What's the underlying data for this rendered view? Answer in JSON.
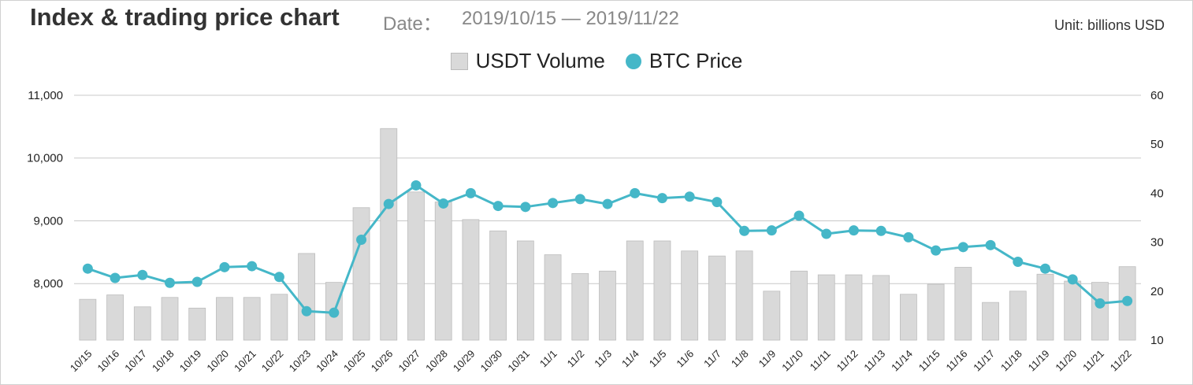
{
  "header": {
    "title": "Index & trading price chart",
    "date_label": "Date：",
    "date_range": "2019/10/15 — 2019/11/22",
    "unit": "Unit: billions USD"
  },
  "colors": {
    "volume": "#d9d9d9",
    "price": "#45b7c8",
    "grid": "#c8c8c8"
  },
  "chart_data": {
    "type": "bar+line",
    "categories": [
      "10/15",
      "10/16",
      "10/17",
      "10/18",
      "10/19",
      "10/20",
      "10/21",
      "10/22",
      "10/23",
      "10/24",
      "10/25",
      "10/26",
      "10/27",
      "10/28",
      "10/29",
      "10/30",
      "10/31",
      "11/1",
      "11/2",
      "11/3",
      "11/4",
      "11/5",
      "11/6",
      "11/7",
      "11/8",
      "11/9",
      "11/10",
      "11/11",
      "11/12",
      "11/13",
      "11/14",
      "11/15",
      "11/16",
      "11/17",
      "11/18",
      "11/19",
      "11/20",
      "11/21",
      "11/22"
    ],
    "left_axis": {
      "min": 7100,
      "max": 11000,
      "ticks": [
        8000,
        9000,
        10000,
        11000
      ],
      "tick_labels": [
        "8,000",
        "9,000",
        "10,000",
        "11,000"
      ]
    },
    "right_axis": {
      "min": 10,
      "max": 60,
      "ticks": [
        10,
        20,
        30,
        40,
        50,
        60
      ],
      "tick_labels": [
        "10",
        "20",
        "30",
        "40",
        "50",
        "60"
      ]
    },
    "legend_position": "top-center",
    "grid": true,
    "series": [
      {
        "name": "USDT Volume",
        "type": "bar",
        "axis": "left",
        "values": [
          7750,
          7820,
          7630,
          7780,
          7610,
          7780,
          7780,
          7830,
          8480,
          8020,
          9210,
          10470,
          9460,
          9300,
          9020,
          8840,
          8680,
          8460,
          8160,
          8200,
          8680,
          8680,
          8520,
          8440,
          8520,
          7880,
          8200,
          8140,
          8140,
          8130,
          7830,
          7990,
          8260,
          7700,
          7880,
          8150,
          8040,
          8020,
          8270
        ]
      },
      {
        "name": "BTC Price",
        "type": "line",
        "axis": "right",
        "values": [
          24.6,
          22.7,
          23.3,
          21.7,
          21.9,
          24.9,
          25.1,
          22.9,
          15.9,
          15.6,
          30.5,
          37.8,
          41.6,
          37.9,
          40.0,
          37.4,
          37.2,
          38.0,
          38.8,
          37.8,
          40.0,
          39.0,
          39.3,
          38.2,
          32.3,
          32.4,
          35.4,
          31.7,
          32.4,
          32.3,
          31.0,
          28.3,
          29.0,
          29.4,
          26.0,
          24.6,
          22.4,
          17.5,
          18.0
        ]
      }
    ]
  }
}
